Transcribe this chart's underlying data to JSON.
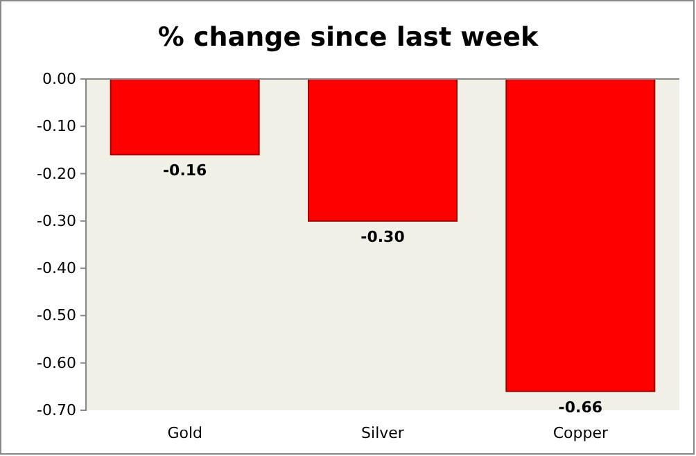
{
  "chart_data": {
    "type": "bar",
    "title": "% change since last week",
    "categories": [
      "Gold",
      "Silver",
      "Copper"
    ],
    "values": [
      -0.16,
      -0.3,
      -0.66
    ],
    "color": "#ff0000",
    "ylim": [
      -0.7,
      0
    ],
    "yticks": [
      {
        "value": 0,
        "label": "0.00"
      },
      {
        "value": -0.1,
        "label": "-0.10"
      },
      {
        "value": -0.2,
        "label": "-0.20"
      },
      {
        "value": -0.3,
        "label": "-0.30"
      },
      {
        "value": -0.4,
        "label": "-0.40"
      },
      {
        "value": -0.5,
        "label": "-0.50"
      },
      {
        "value": -0.6,
        "label": "-0.60"
      },
      {
        "value": -0.7,
        "label": "-0.70"
      }
    ],
    "value_labels": [
      "-0.16",
      "-0.30",
      "-0.66"
    ]
  }
}
